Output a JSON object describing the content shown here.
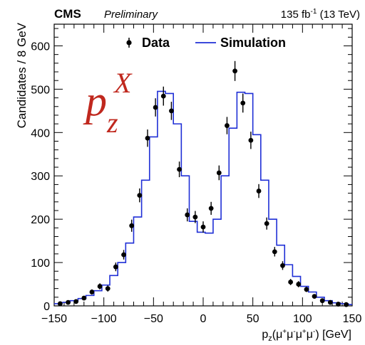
{
  "header": {
    "experiment": "CMS",
    "status": "Preliminary",
    "lumi": "135 fb",
    "lumi_exp": "-1",
    "energy": " (13 TeV)"
  },
  "annotation": {
    "p": "p",
    "sub": "z",
    "sup": "X",
    "color": "#c0281e"
  },
  "chart_data": {
    "type": "line",
    "xlabel": {
      "p": "p",
      "sub": "z",
      "rest1": "(μ",
      "plus": "+",
      "mu2": "μ",
      "minus": "-",
      "mu3": "μ",
      "plus2": "+",
      "mu4": "μ",
      "minus2": "-",
      "unit": ") [GeV]"
    },
    "ylabel": "Candidates / 8 GeV",
    "xlim": [
      -150,
      150
    ],
    "ylim": [
      0,
      650
    ],
    "x_ticks": [
      -150,
      -100,
      -50,
      0,
      50,
      100,
      150
    ],
    "y_ticks": [
      0,
      100,
      200,
      300,
      400,
      500,
      600
    ],
    "legend_position": "top",
    "legend": [
      {
        "label": "Data",
        "kind": "marker"
      },
      {
        "label": "Simulation",
        "kind": "line"
      }
    ],
    "colors": {
      "data": "#000000",
      "simulation": "#1f2fd6"
    },
    "simulation": {
      "name": "Simulation",
      "bin_edges": [
        -150,
        -142,
        -134,
        -126,
        -118,
        -110,
        -102,
        -94,
        -86,
        -78,
        -70,
        -62,
        -54,
        -46,
        -38,
        -30,
        -22,
        -14,
        -6,
        2,
        10,
        18,
        26,
        34,
        42,
        50,
        58,
        66,
        74,
        82,
        90,
        98,
        106,
        114,
        122,
        130,
        138,
        146,
        150
      ],
      "values": [
        5,
        8,
        12,
        17,
        24,
        35,
        48,
        70,
        100,
        145,
        205,
        290,
        390,
        495,
        490,
        420,
        300,
        195,
        170,
        168,
        200,
        300,
        410,
        493,
        490,
        395,
        290,
        200,
        140,
        95,
        68,
        45,
        32,
        20,
        12,
        7,
        5,
        3
      ]
    },
    "data": {
      "name": "Data",
      "points": [
        {
          "x": -144,
          "y": 5,
          "err": 3
        },
        {
          "x": -136,
          "y": 8,
          "err": 3
        },
        {
          "x": -128,
          "y": 10,
          "err": 4
        },
        {
          "x": -120,
          "y": 18,
          "err": 5
        },
        {
          "x": -112,
          "y": 32,
          "err": 6
        },
        {
          "x": -104,
          "y": 45,
          "err": 7
        },
        {
          "x": -96,
          "y": 40,
          "err": 7
        },
        {
          "x": -88,
          "y": 90,
          "err": 10
        },
        {
          "x": -80,
          "y": 118,
          "err": 11
        },
        {
          "x": -72,
          "y": 185,
          "err": 14
        },
        {
          "x": -64,
          "y": 255,
          "err": 16
        },
        {
          "x": -56,
          "y": 387,
          "err": 20
        },
        {
          "x": -48,
          "y": 458,
          "err": 21
        },
        {
          "x": -40,
          "y": 484,
          "err": 22
        },
        {
          "x": -32,
          "y": 450,
          "err": 21
        },
        {
          "x": -24,
          "y": 315,
          "err": 18
        },
        {
          "x": -16,
          "y": 210,
          "err": 15
        },
        {
          "x": -8,
          "y": 205,
          "err": 14
        },
        {
          "x": 0,
          "y": 182,
          "err": 13
        },
        {
          "x": 8,
          "y": 225,
          "err": 15
        },
        {
          "x": 16,
          "y": 307,
          "err": 17
        },
        {
          "x": 24,
          "y": 416,
          "err": 20
        },
        {
          "x": 32,
          "y": 542,
          "err": 23
        },
        {
          "x": 40,
          "y": 468,
          "err": 22
        },
        {
          "x": 48,
          "y": 382,
          "err": 20
        },
        {
          "x": 56,
          "y": 265,
          "err": 16
        },
        {
          "x": 64,
          "y": 190,
          "err": 14
        },
        {
          "x": 72,
          "y": 125,
          "err": 11
        },
        {
          "x": 80,
          "y": 93,
          "err": 10
        },
        {
          "x": 88,
          "y": 55,
          "err": 7
        },
        {
          "x": 96,
          "y": 50,
          "err": 7
        },
        {
          "x": 104,
          "y": 38,
          "err": 6
        },
        {
          "x": 112,
          "y": 22,
          "err": 5
        },
        {
          "x": 120,
          "y": 12,
          "err": 4
        },
        {
          "x": 128,
          "y": 8,
          "err": 3
        },
        {
          "x": 136,
          "y": 4,
          "err": 2
        },
        {
          "x": 144,
          "y": 3,
          "err": 2
        }
      ]
    }
  }
}
